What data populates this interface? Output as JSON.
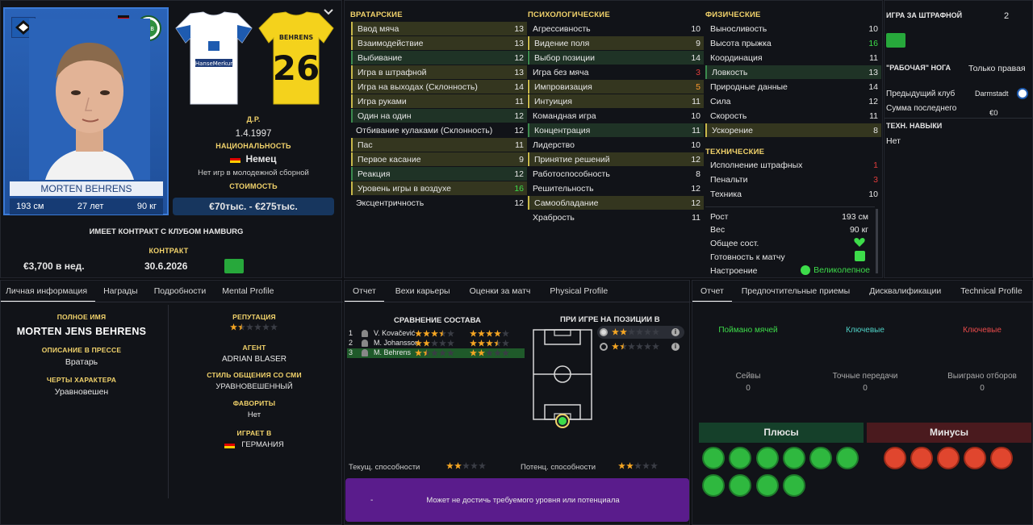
{
  "player": {
    "card_name": "MORTEN BEHRENS",
    "height": "193 см",
    "age": "27 лет",
    "weight": "90 кг",
    "shirt_name": "BEHRENS",
    "shirt_number": "26",
    "sponsor": "HanseMerkur"
  },
  "bio": {
    "dob_label": "Д.Р.",
    "dob": "1.4.1997",
    "nationality_label": "НАЦИОНАЛЬНОСТЬ",
    "nationality": "Немец",
    "youth_note": "Нет игр в молодежной сборной",
    "value_label": "СТОИМОСТЬ",
    "value": "€70тыс. - €275тыс.",
    "contract_banner": "ИМЕЕТ КОНТРАКТ С КЛУБОМ HAMBURG",
    "contract_label": "КОНТРАКТ",
    "wage": "€3,700 в нед.",
    "contract_end": "30.6.2026"
  },
  "gk": {
    "title": "ВРАТАРСКИЕ",
    "rows": [
      {
        "name": "Ввод мяча",
        "value": "13"
      },
      {
        "name": "Взаимодействие",
        "value": "13"
      },
      {
        "name": "Выбивание",
        "value": "12"
      },
      {
        "name": "Игра в штрафной",
        "value": "13"
      },
      {
        "name": "Игра на выходах (Склонность)",
        "value": "14"
      },
      {
        "name": "Игра руками",
        "value": "11"
      },
      {
        "name": "Один на один",
        "value": "12"
      },
      {
        "name": "Отбивание кулаками (Склонность)",
        "value": "12"
      },
      {
        "name": "Пас",
        "value": "11"
      },
      {
        "name": "Первое касание",
        "value": "9"
      },
      {
        "name": "Реакция",
        "value": "12"
      },
      {
        "name": "Уровень игры в воздухе",
        "value": "16"
      },
      {
        "name": "Эксцентричность",
        "value": "12"
      }
    ]
  },
  "mental": {
    "title": "ПСИХОЛОГИЧЕСКИЕ",
    "rows": [
      {
        "name": "Агрессивность",
        "value": "10"
      },
      {
        "name": "Видение поля",
        "value": "9"
      },
      {
        "name": "Выбор позиции",
        "value": "14"
      },
      {
        "name": "Игра без мяча",
        "value": "3"
      },
      {
        "name": "Импровизация",
        "value": "5"
      },
      {
        "name": "Интуиция",
        "value": "11"
      },
      {
        "name": "Командная игра",
        "value": "10"
      },
      {
        "name": "Концентрация",
        "value": "11"
      },
      {
        "name": "Лидерство",
        "value": "10"
      },
      {
        "name": "Принятие решений",
        "value": "12"
      },
      {
        "name": "Работоспособность",
        "value": "8"
      },
      {
        "name": "Решительность",
        "value": "12"
      },
      {
        "name": "Самообладание",
        "value": "12"
      },
      {
        "name": "Храбрость",
        "value": "11"
      }
    ]
  },
  "physical": {
    "title": "ФИЗИЧЕСКИЕ",
    "rows": [
      {
        "name": "Выносливость",
        "value": "10"
      },
      {
        "name": "Высота прыжка",
        "value": "16"
      },
      {
        "name": "Координация",
        "value": "11"
      },
      {
        "name": "Ловкость",
        "value": "13"
      },
      {
        "name": "Природные данные",
        "value": "14"
      },
      {
        "name": "Сила",
        "value": "12"
      },
      {
        "name": "Скорость",
        "value": "11"
      },
      {
        "name": "Ускорение",
        "value": "8"
      }
    ]
  },
  "technical": {
    "title": "ТЕХНИЧЕСКИЕ",
    "rows": [
      {
        "name": "Исполнение штрафных",
        "value": "1"
      },
      {
        "name": "Пенальти",
        "value": "3"
      },
      {
        "name": "Техника",
        "value": "10"
      }
    ]
  },
  "body_info": {
    "height_label": "Рост",
    "height": "193 см",
    "weight_label": "Вес",
    "weight": "90 кг",
    "condition_label": "Общее сост.",
    "readiness_label": "Готовность к матчу",
    "mood_label": "Настроение",
    "mood": "Великолепное"
  },
  "side": {
    "penalty_label": "ИГРА ЗА ШТРАФНОЙ",
    "penalty_value": "2",
    "foot_label": "\"РАБОЧАЯ\" НОГА",
    "foot_value": "Только правая",
    "prev_club_label": "Предыдущий клуб",
    "prev_club": "Darmstadt",
    "last_fee_label": "Сумма последнего",
    "last_fee": "€0",
    "tech_skills_label": "ТЕХН. НАВЫКИ",
    "tech_skills": "Нет"
  },
  "left_tabs": [
    "Личная информация",
    "Награды",
    "Подробности",
    "Mental Profile"
  ],
  "personal": {
    "fullname_label": "ПОЛНОЕ ИМЯ",
    "fullname": "MORTEN JENS BEHRENS",
    "press_label": "ОПИСАНИЕ В ПРЕССЕ",
    "press": "Вратарь",
    "traits_label": "ЧЕРТЫ ХАРАКТЕРА",
    "traits": "Уравновешен",
    "rep_label": "РЕПУТАЦИЯ",
    "agent_label": "АГЕНТ",
    "agent": "ADRIAN BLASER",
    "media_label": "СТИЛЬ ОБЩЕНИЯ СО СМИ",
    "media": "УРАВНОВЕШЕННЫЙ",
    "fav_label": "ФАВОРИТЫ",
    "fav": "Нет",
    "plays_label": "ИГРАЕТ В",
    "plays": "ГЕРМАНИЯ"
  },
  "mid_tabs": [
    "Отчет",
    "Вехи карьеры",
    "Оценки за матч",
    "Physical Profile"
  ],
  "compare": {
    "title": "СРАВНЕНИЕ СОСТАВА",
    "rows": [
      {
        "rank": "1",
        "name": "V. Kovačević",
        "cur": 3.5,
        "pot": 4
      },
      {
        "rank": "2",
        "name": "M. Johansson",
        "cur": 2,
        "pot": 3.5
      },
      {
        "rank": "3",
        "name": "M. Behrens",
        "cur": 1.5,
        "pot": 2
      }
    ],
    "position_title": "ПРИ ИГРЕ НА ПОЗИЦИИ В",
    "pos_ratings": [
      2,
      1.5
    ],
    "current_label": "Текущ. способности",
    "potential_label": "Потенц. способности",
    "current": 2,
    "potential": 2,
    "banner_dash": "-",
    "banner": "Может не достичь требуемого уровня или потенциала"
  },
  "right_tabs": [
    "Отчет",
    "Предпочтительные приемы",
    "Дисквалификации",
    "Technical Profile"
  ],
  "report": {
    "s1": "Поймано мячей",
    "s2": "Ключевые",
    "s3": "Ключевые",
    "k1": "Сейвы",
    "k1v": "0",
    "k2": "Точные передачи",
    "k2v": "0",
    "k3": "Выиграно отборов",
    "k3v": "0",
    "pros": "Плюсы",
    "cons": "Минусы"
  },
  "colors": {
    "accent_gold": "#f2d36b",
    "green": "#3ddc4a",
    "orange": "#ff9a2e",
    "red": "#e23c3c"
  },
  "reputation": 1.5
}
